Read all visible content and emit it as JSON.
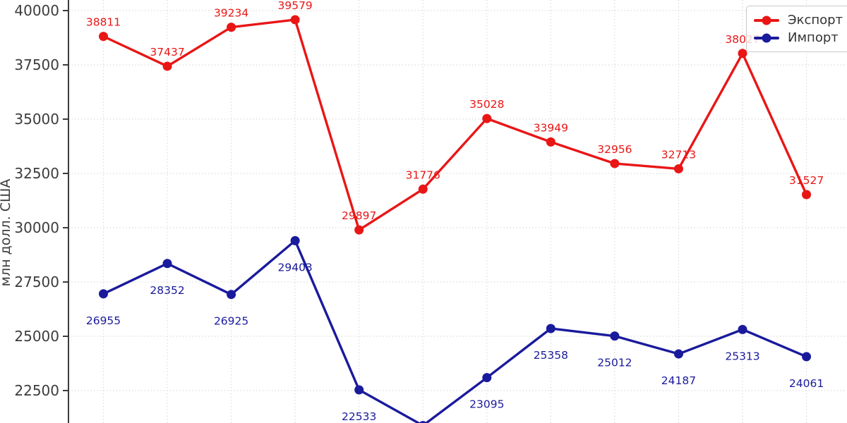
{
  "chart_data": {
    "type": "line",
    "title": "",
    "ylabel": "млн долл. США",
    "y_ticks": [
      40000,
      37500,
      35000,
      32500,
      30000,
      27500,
      25000,
      22500
    ],
    "y_view_range_approx": [
      21000,
      40500
    ],
    "x_point_count": 12,
    "x_tick_labels_visible": false,
    "grid": {
      "style": "dotted",
      "color": "#dcdcdc",
      "vertical": true,
      "horizontal": true
    },
    "axis_color": "#3c3c3c",
    "legend_position": "top-right",
    "series": [
      {
        "name": "Экспорт",
        "color": "#e91616",
        "label_side": "above",
        "values": [
          38811,
          37437,
          39234,
          39579,
          29897,
          31776,
          35028,
          33949,
          32956,
          32713,
          38027,
          31527
        ],
        "point_labels": [
          "38811",
          "37437",
          "39234",
          "39579",
          "29897",
          "31776",
          "35028",
          "33949",
          "32956",
          "32713",
          "38027",
          "31527"
        ]
      },
      {
        "name": "Импорт",
        "color": "#1a1a9c",
        "label_side": "below",
        "values": [
          26955,
          28352,
          26925,
          29403,
          22533,
          20890,
          23095,
          25358,
          25012,
          24187,
          25313,
          24061
        ],
        "point_labels": [
          "26955",
          "28352",
          "26925",
          "29403",
          "22533",
          "",
          "23095",
          "25358",
          "25012",
          "24187",
          "25313",
          "24061"
        ],
        "note_on_index_5": "point dips below cropped bottom edge; value estimated from line slope, label not visible"
      }
    ]
  }
}
